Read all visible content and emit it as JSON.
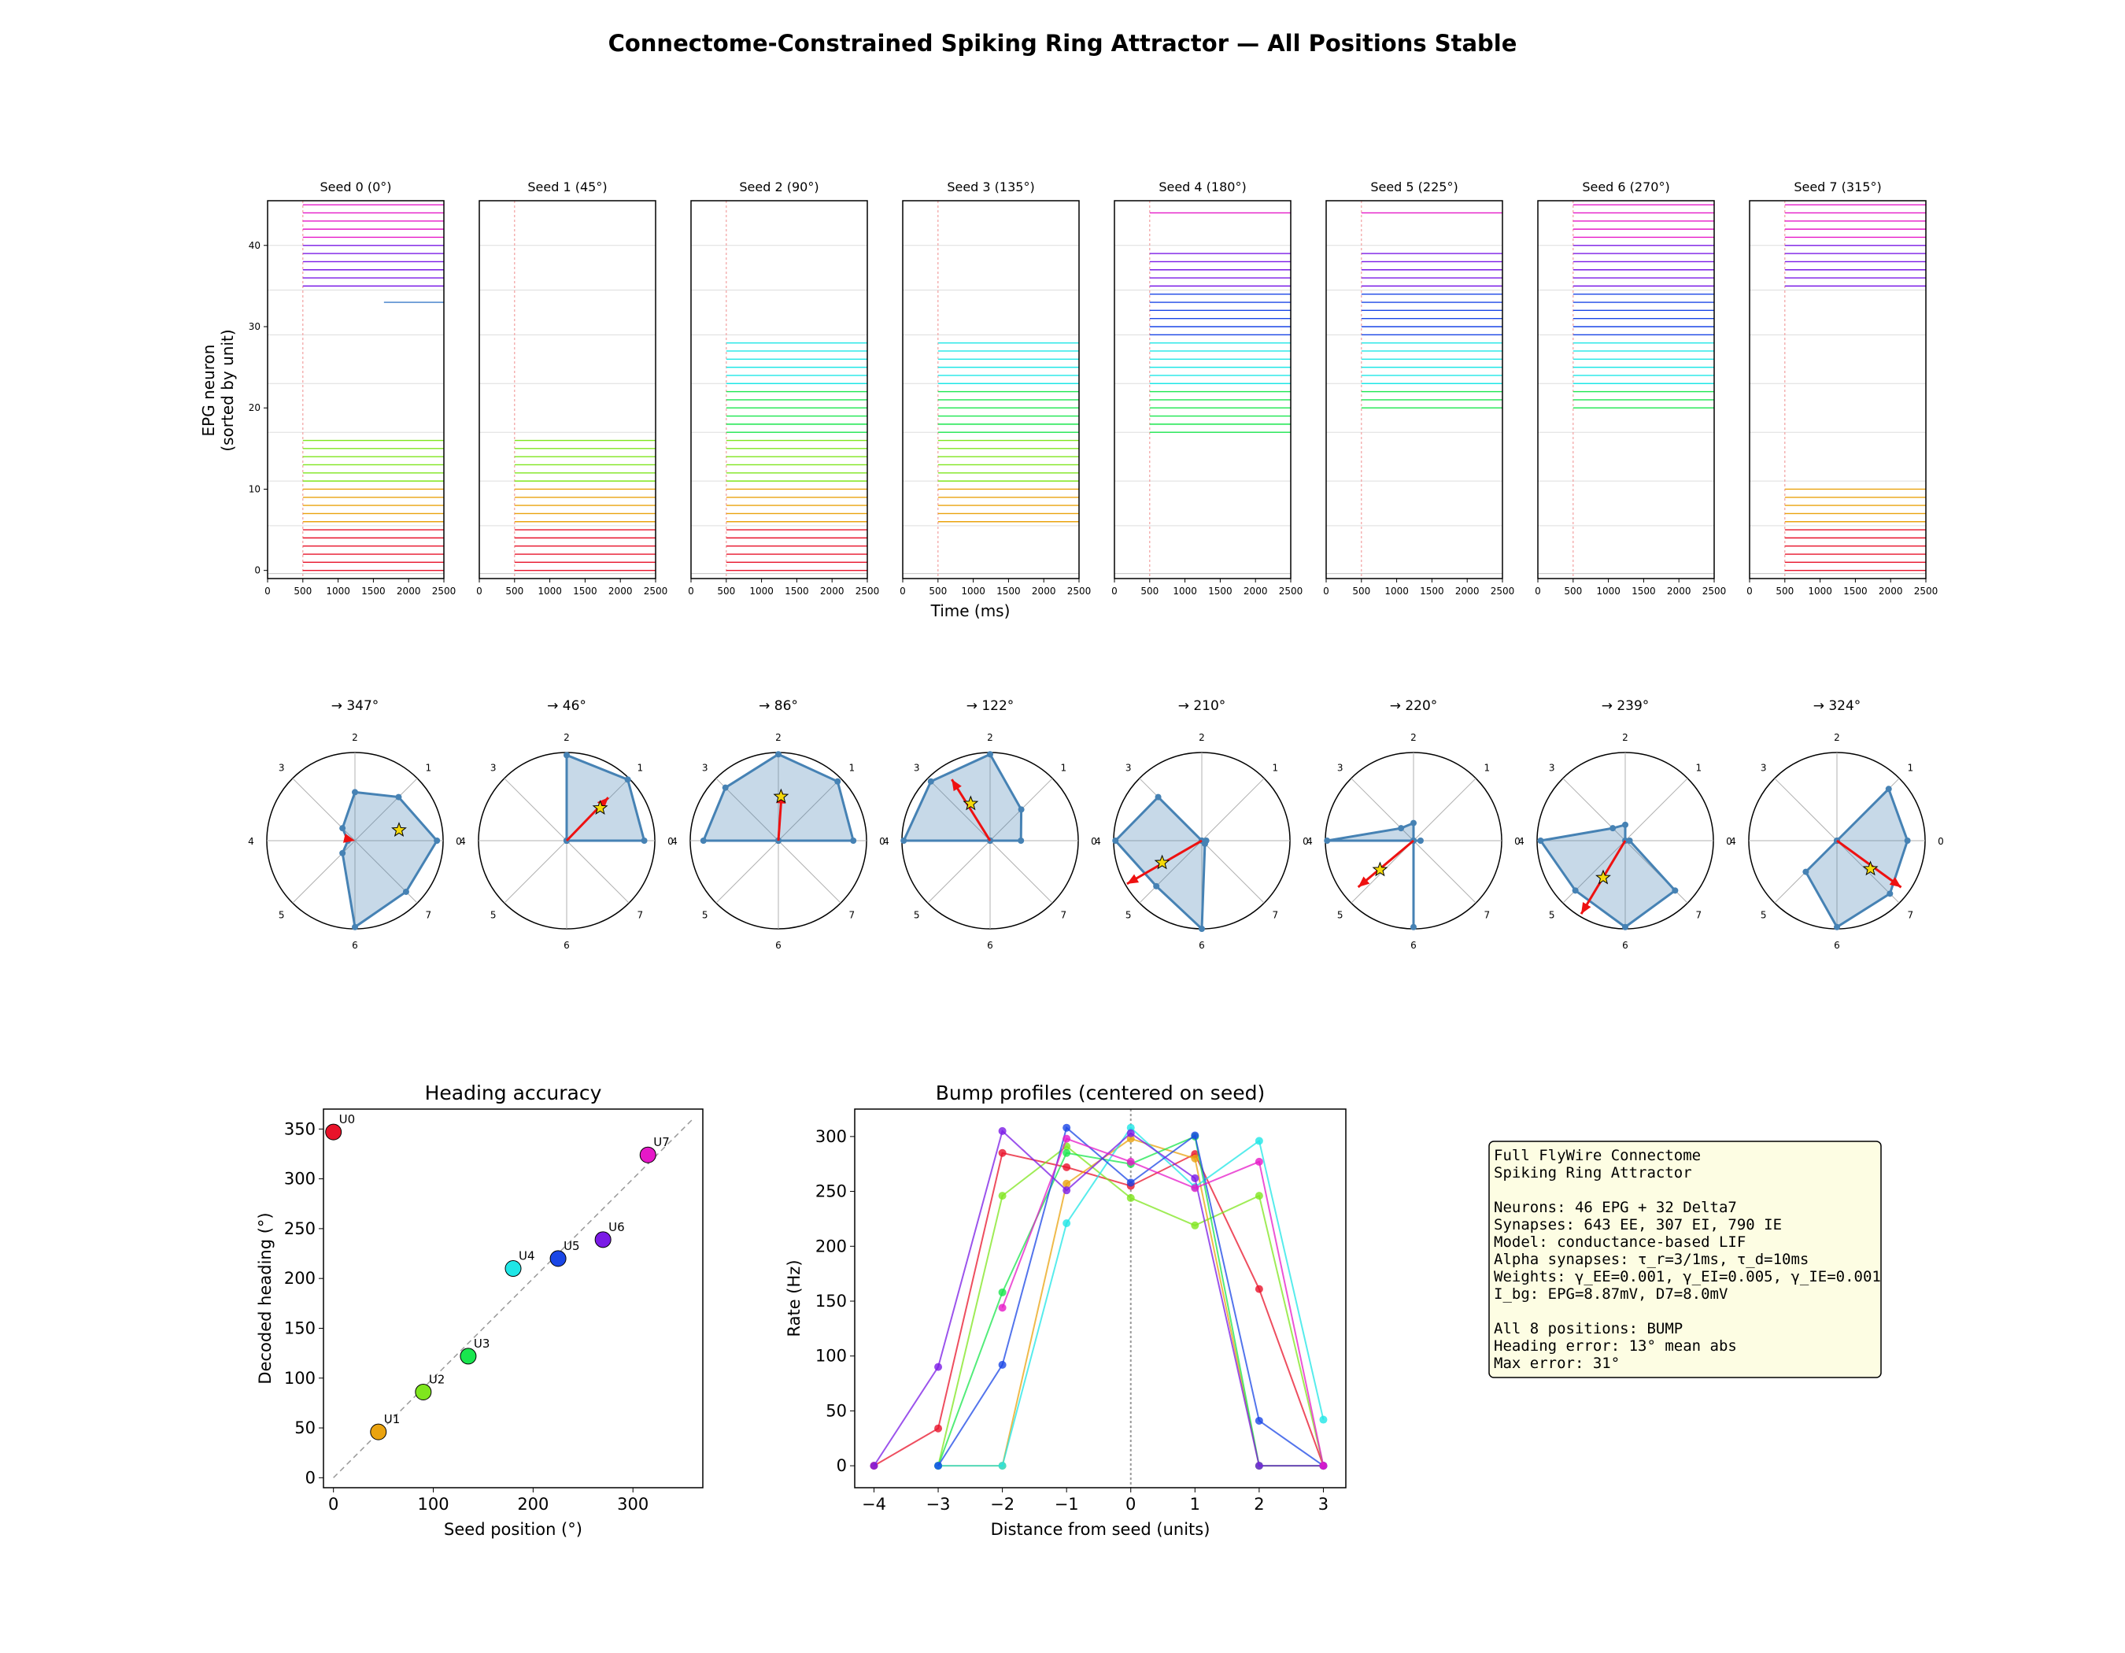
{
  "figure": {
    "title": "Connectome-Constrained Spiking Ring Attractor — All Positions Stable",
    "unit_colors": [
      "#e8132a",
      "#eaa30f",
      "#7fe61e",
      "#19e64e",
      "#1fe6e6",
      "#1a46e6",
      "#7a1ae6",
      "#e619c8"
    ]
  },
  "raster": {
    "ylabel": "EPG neuron\n(sorted by unit)",
    "xlabel": "Time (ms)",
    "xticks": [
      0,
      500,
      1000,
      1500,
      2000,
      2500
    ],
    "yticks": [
      0,
      10,
      20,
      30,
      40
    ],
    "xlim": [
      0,
      2500
    ],
    "ylim": [
      -1,
      45.5
    ],
    "stim_time": 500,
    "group_boundaries": [
      5.5,
      11,
      17,
      23,
      29,
      34.5,
      40
    ],
    "neurons_per_unit": [
      6,
      5,
      6,
      6,
      6,
      6,
      6,
      5
    ],
    "panels": [
      {
        "title": "Seed 0 (0°)",
        "active_units": [
          0,
          1,
          2,
          6,
          7
        ],
        "extra": {
          "33": 1650
        },
        "start": 500
      },
      {
        "title": "Seed 1 (45°)",
        "active_units": [
          0,
          1,
          2
        ],
        "start": 500
      },
      {
        "title": "Seed 2 (90°)",
        "active_units": [
          0,
          1,
          2,
          3,
          4
        ],
        "start": 500
      },
      {
        "title": "Seed 3 (135°)",
        "active_units": [
          1,
          2,
          3,
          4
        ],
        "start": 500
      },
      {
        "title": "Seed 4 (180°)",
        "active_units": [
          3,
          4,
          5,
          6,
          7
        ],
        "skip": [
          40,
          41,
          42,
          43,
          45
        ],
        "start": 500
      },
      {
        "title": "Seed 5 (225°)",
        "active_units": [
          3,
          4,
          5,
          6,
          7
        ],
        "skip": [
          17,
          18,
          19,
          40,
          41,
          42,
          43,
          45
        ],
        "start": 500
      },
      {
        "title": "Seed 6 (270°)",
        "active_units": [
          3,
          4,
          5,
          6,
          7
        ],
        "skip": [
          17,
          18,
          19
        ],
        "start": 500
      },
      {
        "title": "Seed 7 (315°)",
        "active_units": [
          0,
          1,
          6,
          7
        ],
        "start": 500
      }
    ]
  },
  "polar": {
    "panels": [
      {
        "title": "→ 347°",
        "rates": [
          0.93,
          0.7,
          0.55,
          0.2,
          0.08,
          0.2,
          0.98,
          0.82
        ],
        "arrow": 0,
        "star": [
          0.5,
          0.12
        ]
      },
      {
        "title": "→ 46°",
        "rates": [
          0.88,
          0.98,
          0.97,
          0,
          0,
          0,
          0,
          0
        ],
        "arrow": 0.68,
        "star": [
          0.38,
          0.37
        ]
      },
      {
        "title": "→ 86°",
        "rates": [
          0.85,
          0.95,
          0.98,
          0.85,
          0.85,
          0,
          0,
          0
        ],
        "arrow": 0.55,
        "star": [
          0.03,
          0.5
        ]
      },
      {
        "title": "→ 122°",
        "rates": [
          0.35,
          0.5,
          0.98,
          0.95,
          0.98,
          0,
          0,
          0
        ],
        "arrow": 0.82,
        "star": [
          -0.22,
          0.42
        ]
      },
      {
        "title": "→ 210°",
        "rates": [
          0.05,
          0,
          0,
          0.7,
          0.98,
          0.73,
          1.0,
          0.05
        ],
        "arrow": 0.98,
        "star": [
          -0.45,
          -0.25
        ]
      },
      {
        "title": "→ 220°",
        "rates": [
          0.08,
          0,
          0.2,
          0.2,
          0.98,
          0,
          0.98,
          0
        ],
        "arrow": 0.82,
        "star": [
          -0.38,
          -0.33
        ]
      },
      {
        "title": "→ 239°",
        "rates": [
          0.05,
          0,
          0.18,
          0.2,
          0.96,
          0.8,
          0.98,
          0.8
        ],
        "arrow": 0.97,
        "star": [
          -0.25,
          -0.42
        ]
      },
      {
        "title": "→ 324°",
        "rates": [
          0.8,
          0.83,
          0,
          0,
          0,
          0.5,
          0.98,
          0.85
        ],
        "arrow": 0.9,
        "star": [
          0.38,
          -0.32
        ]
      }
    ],
    "ring_labels": [
      "0",
      "1",
      "2",
      "3",
      "4",
      "5",
      "6",
      "7"
    ]
  },
  "accuracy": {
    "title": "Heading accuracy",
    "xlabel": "Seed position (°)",
    "ylabel": "Decoded heading (°)",
    "xlim": [
      -10,
      370
    ],
    "ylim": [
      -10,
      370
    ],
    "xticks": [
      0,
      100,
      200,
      300
    ],
    "yticks": [
      0,
      50,
      100,
      150,
      200,
      250,
      300,
      350
    ],
    "points": [
      {
        "label": "U0",
        "x": 0,
        "y": 347
      },
      {
        "label": "U1",
        "x": 45,
        "y": 46
      },
      {
        "label": "U2",
        "x": 90,
        "y": 86
      },
      {
        "label": "U3",
        "x": 135,
        "y": 122
      },
      {
        "label": "U4",
        "x": 180,
        "y": 210
      },
      {
        "label": "U5",
        "x": 225,
        "y": 220
      },
      {
        "label": "U6",
        "x": 270,
        "y": 239
      },
      {
        "label": "U7",
        "x": 315,
        "y": 324
      }
    ]
  },
  "chart_data": [
    {
      "type": "scatter",
      "title": "Heading accuracy",
      "xlabel": "Seed position (°)",
      "ylabel": "Decoded heading (°)",
      "x": [
        0,
        45,
        90,
        135,
        180,
        225,
        270,
        315
      ],
      "y": [
        347,
        46,
        86,
        122,
        210,
        220,
        239,
        324
      ],
      "labels": [
        "U0",
        "U1",
        "U2",
        "U3",
        "U4",
        "U5",
        "U6",
        "U7"
      ],
      "reference_line": "y = x"
    },
    {
      "type": "line",
      "title": "Bump profiles (centered on seed)",
      "xlabel": "Distance from seed (units)",
      "ylabel": "Rate (Hz)",
      "series": [
        {
          "values": [
            [
              -4,
              0
            ],
            [
              -3,
              34
            ],
            [
              -2,
              285
            ],
            [
              -1,
              272
            ],
            [
              0,
              255
            ],
            [
              1,
              284
            ],
            [
              2,
              161
            ],
            [
              3,
              0
            ]
          ]
        },
        {
          "values": [
            [
              -3,
              0
            ],
            [
              -2,
              0
            ],
            [
              -1,
              257
            ],
            [
              0,
              298
            ],
            [
              1,
              280
            ],
            [
              2,
              0
            ],
            [
              3,
              0
            ]
          ]
        },
        {
          "values": [
            [
              -3,
              0
            ],
            [
              -2,
              246
            ],
            [
              -1,
              291
            ],
            [
              0,
              244
            ],
            [
              1,
              219
            ],
            [
              2,
              246
            ],
            [
              3,
              0
            ]
          ]
        },
        {
          "values": [
            [
              -3,
              0
            ],
            [
              -2,
              158
            ],
            [
              -1,
              285
            ],
            [
              0,
              275
            ],
            [
              1,
              300
            ],
            [
              2,
              0
            ],
            [
              3,
              0
            ]
          ]
        },
        {
          "values": [
            [
              -3,
              0
            ],
            [
              -2,
              0
            ],
            [
              -1,
              221
            ],
            [
              0,
              308
            ],
            [
              1,
              254
            ],
            [
              2,
              296
            ],
            [
              3,
              42
            ]
          ]
        },
        {
          "values": [
            [
              -3,
              0
            ],
            [
              -2,
              92
            ],
            [
              -1,
              308
            ],
            [
              0,
              258
            ],
            [
              1,
              301
            ],
            [
              2,
              41
            ],
            [
              3,
              0
            ]
          ]
        },
        {
          "values": [
            [
              -4,
              0
            ],
            [
              -3,
              90
            ],
            [
              -2,
              305
            ],
            [
              -1,
              251
            ],
            [
              0,
              303
            ],
            [
              1,
              262
            ],
            [
              2,
              0
            ],
            [
              3,
              0
            ]
          ]
        },
        {
          "values": [
            [
              -2,
              144
            ],
            [
              -1,
              298
            ],
            [
              0,
              277
            ],
            [
              1,
              253
            ],
            [
              2,
              277
            ],
            [
              3,
              0
            ]
          ]
        }
      ]
    }
  ],
  "bump": {
    "title": "Bump profiles (centered on seed)",
    "xlabel": "Distance from seed (units)",
    "ylabel": "Rate (Hz)",
    "xlim": [
      -4.3,
      3.35
    ],
    "ylim": [
      -20,
      325
    ],
    "xticks": [
      -4,
      -3,
      -2,
      -1,
      0,
      1,
      2,
      3
    ],
    "yticks": [
      0,
      50,
      100,
      150,
      200,
      250,
      300
    ]
  },
  "info": {
    "lines": [
      "Full FlyWire Connectome",
      "Spiking Ring Attractor",
      "",
      "Neurons: 46 EPG + 32 Delta7",
      "Synapses: 643 EE, 307 EI, 790 IE",
      "Model: conductance-based LIF",
      "Alpha synapses: τ_r=3/1ms, τ_d=10ms",
      "Weights: γ_EE=0.001, γ_EI=0.005, γ_IE=0.001",
      "I_bg: EPG=8.87mV, D7=8.0mV",
      "",
      "All 8 positions: BUMP",
      "Heading error: 13° mean abs",
      "Max error: 31°"
    ]
  }
}
